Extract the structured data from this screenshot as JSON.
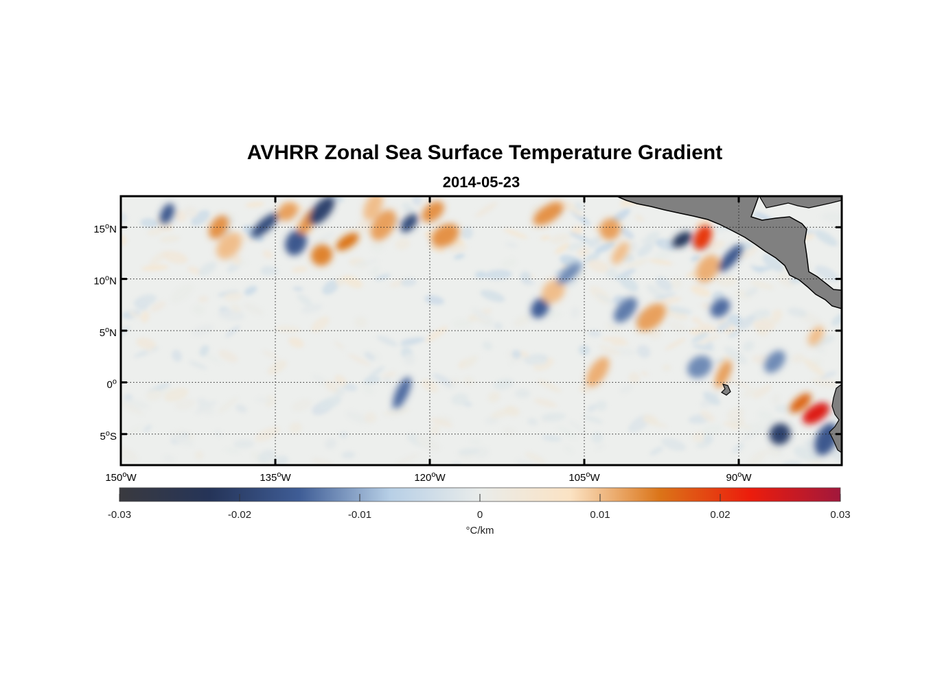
{
  "title": "AVHRR Zonal Sea Surface Temperature Gradient",
  "subtitle": "2014-05-23",
  "map": {
    "lon_range": [
      -150,
      -80
    ],
    "lat_range": [
      -8,
      18
    ],
    "grid": true,
    "land_color": "#808080",
    "lon_ticks": [
      {
        "value": -150,
        "deg": "150",
        "hemi": "W"
      },
      {
        "value": -135,
        "deg": "135",
        "hemi": "W"
      },
      {
        "value": -120,
        "deg": "120",
        "hemi": "W"
      },
      {
        "value": -105,
        "deg": "105",
        "hemi": "W"
      },
      {
        "value": -90,
        "deg": "90",
        "hemi": "W"
      }
    ],
    "lat_ticks": [
      {
        "value": 15,
        "deg": "15",
        "hemi": "N"
      },
      {
        "value": 10,
        "deg": "10",
        "hemi": "N"
      },
      {
        "value": 5,
        "deg": "5",
        "hemi": "N"
      },
      {
        "value": 0,
        "deg": "0",
        "hemi": ""
      },
      {
        "value": -5,
        "deg": "5",
        "hemi": "S"
      }
    ]
  },
  "colorbar": {
    "min": -0.03,
    "max": 0.03,
    "ticks": [
      "-0.03",
      "-0.02",
      "-0.01",
      "0",
      "0.01",
      "0.02",
      "0.03"
    ],
    "unit": "°C/km",
    "colors": [
      "#3a3a3f",
      "#253458",
      "#3f5d96",
      "#b7cfe6",
      "#e9ecea",
      "#fbe3c4",
      "#db7418",
      "#ec1c0c",
      "#a1183c"
    ]
  },
  "chart_data": {
    "type": "heatmap",
    "variable": "Zonal SST gradient",
    "unit": "°C/km",
    "title": "AVHRR Zonal Sea Surface Temperature Gradient",
    "subtitle": "2014-05-23",
    "x": {
      "lon_min": -150,
      "lon_max": -80,
      "ticks": [
        -150,
        -135,
        -120,
        -105,
        -90
      ]
    },
    "y": {
      "lat_min": -8,
      "lat_max": 18,
      "ticks": [
        15,
        10,
        5,
        0,
        -5
      ]
    },
    "clim": [
      -0.03,
      0.03
    ],
    "features": [
      {
        "lon": -145.5,
        "lat": 16.3,
        "value": -0.016
      },
      {
        "lon": -140.5,
        "lat": 15.0,
        "value": 0.013
      },
      {
        "lon": -139.5,
        "lat": 13.2,
        "value": 0.01
      },
      {
        "lon": -136.0,
        "lat": 15.2,
        "value": -0.018
      },
      {
        "lon": -133.8,
        "lat": 16.5,
        "value": 0.012
      },
      {
        "lon": -133.0,
        "lat": 13.5,
        "value": -0.016
      },
      {
        "lon": -131.8,
        "lat": 15.6,
        "value": 0.013
      },
      {
        "lon": -130.5,
        "lat": 16.6,
        "value": -0.02
      },
      {
        "lon": -130.5,
        "lat": 12.3,
        "value": 0.014
      },
      {
        "lon": -128.0,
        "lat": 13.6,
        "value": 0.015
      },
      {
        "lon": -125.5,
        "lat": 17.0,
        "value": 0.01
      },
      {
        "lon": -124.5,
        "lat": 15.2,
        "value": 0.012
      },
      {
        "lon": -122.0,
        "lat": 15.4,
        "value": -0.018
      },
      {
        "lon": -119.7,
        "lat": 16.5,
        "value": 0.013
      },
      {
        "lon": -118.5,
        "lat": 14.2,
        "value": 0.013
      },
      {
        "lon": -122.7,
        "lat": -1.0,
        "value": -0.014
      },
      {
        "lon": -109.3,
        "lat": 7.2,
        "value": -0.015
      },
      {
        "lon": -108.0,
        "lat": 8.8,
        "value": 0.01
      },
      {
        "lon": -106.5,
        "lat": 10.5,
        "value": -0.012
      },
      {
        "lon": -108.5,
        "lat": 16.3,
        "value": 0.013
      },
      {
        "lon": -102.5,
        "lat": 14.8,
        "value": 0.012
      },
      {
        "lon": -101.5,
        "lat": 12.5,
        "value": 0.01
      },
      {
        "lon": -101.0,
        "lat": 7.0,
        "value": -0.013
      },
      {
        "lon": -98.5,
        "lat": 6.3,
        "value": 0.012
      },
      {
        "lon": -95.5,
        "lat": 13.8,
        "value": -0.022
      },
      {
        "lon": -93.5,
        "lat": 14.0,
        "value": 0.02
      },
      {
        "lon": -93.0,
        "lat": 11.0,
        "value": 0.011
      },
      {
        "lon": -90.8,
        "lat": 12.0,
        "value": -0.016
      },
      {
        "lon": -91.8,
        "lat": 7.2,
        "value": -0.014
      },
      {
        "lon": -93.8,
        "lat": 1.5,
        "value": -0.012
      },
      {
        "lon": -91.5,
        "lat": 0.8,
        "value": 0.012
      },
      {
        "lon": -103.7,
        "lat": 1.0,
        "value": 0.011
      },
      {
        "lon": -86.0,
        "lat": -5.0,
        "value": -0.02
      },
      {
        "lon": -84.0,
        "lat": -2.0,
        "value": 0.016
      },
      {
        "lon": -82.5,
        "lat": -3.0,
        "value": 0.024
      },
      {
        "lon": -81.5,
        "lat": -5.5,
        "value": -0.016
      },
      {
        "lon": -82.5,
        "lat": 4.5,
        "value": 0.01
      },
      {
        "lon": -86.5,
        "lat": 2.0,
        "value": -0.012
      }
    ]
  }
}
